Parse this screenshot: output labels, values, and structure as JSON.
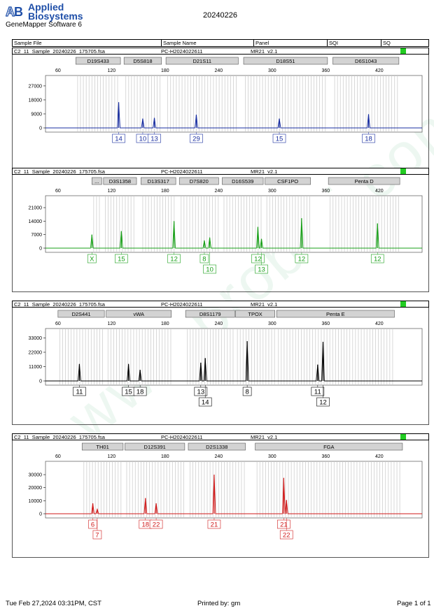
{
  "header": {
    "brand_line1": "Applied",
    "brand_line2": "Biosystems",
    "software": "GeneMapper Software 6",
    "date": "20240226"
  },
  "table_header": {
    "columns": [
      "Sample File",
      "Sample Name",
      "Panel",
      "SQI",
      "SQ"
    ]
  },
  "footer": {
    "timestamp": "Tue Feb 27,2024 03:31PM, CST",
    "printed_by": "Printed by: gm",
    "page": "Page 1 of 1"
  },
  "colors": {
    "blue": "#1a2fa0",
    "green": "#1aa01a",
    "black": "#000000",
    "red": "#d01a1a",
    "status_ok": "#22cc22"
  },
  "chart_data": [
    {
      "type": "line",
      "dye": "blue",
      "sample_file": "C2_11_Sample_20240226_175705.fsa",
      "sample_name": "PC-H2024022611",
      "panel": "MR21_v2.1",
      "x_ticks": [
        60,
        120,
        180,
        240,
        300,
        360,
        420
      ],
      "y_ticks": [
        0,
        9000,
        18000,
        27000
      ],
      "ylim": [
        0,
        31000
      ],
      "markers": [
        {
          "name": "D19S433",
          "start": 80,
          "end": 130
        },
        {
          "name": "D5S818",
          "start": 134,
          "end": 176
        },
        {
          "name": "D21S11",
          "start": 181,
          "end": 262
        },
        {
          "name": "D18S51",
          "start": 268,
          "end": 362
        },
        {
          "name": "D6S1043",
          "start": 368,
          "end": 442
        }
      ],
      "peaks": [
        {
          "x": 128,
          "h": 16500,
          "labels": [
            "14"
          ]
        },
        {
          "x": 155,
          "h": 6000,
          "labels": [
            "10"
          ]
        },
        {
          "x": 168,
          "h": 6500,
          "labels": [
            "13"
          ]
        },
        {
          "x": 215,
          "h": 8500,
          "labels": [
            "29"
          ]
        },
        {
          "x": 308,
          "h": 6000,
          "labels": [
            "15"
          ]
        },
        {
          "x": 408,
          "h": 8800,
          "labels": [
            "18"
          ]
        }
      ]
    },
    {
      "type": "line",
      "dye": "green",
      "sample_file": "C2_11_Sample_20240226_175705.fsa",
      "sample_name": "PC-H2024022611",
      "panel": "MR21_v2.1",
      "x_ticks": [
        60,
        120,
        180,
        240,
        300,
        360,
        420
      ],
      "y_ticks": [
        0,
        7000,
        14000,
        21000
      ],
      "ylim": [
        0,
        25000
      ],
      "markers": [
        {
          "name": "...",
          "start": 98,
          "end": 109
        },
        {
          "name": "D3S1358",
          "start": 111,
          "end": 148
        },
        {
          "name": "D13S317",
          "start": 153,
          "end": 192
        },
        {
          "name": "D7S820",
          "start": 196,
          "end": 240
        },
        {
          "name": "D16S539",
          "start": 244,
          "end": 290
        },
        {
          "name": "CSF1PO",
          "start": 292,
          "end": 343
        },
        {
          "name": "Penta D",
          "start": 363,
          "end": 443
        }
      ],
      "peaks": [
        {
          "x": 98,
          "h": 7000,
          "labels": [
            "X"
          ]
        },
        {
          "x": 131,
          "h": 8800,
          "labels": [
            "15"
          ]
        },
        {
          "x": 190,
          "h": 14000,
          "labels": [
            "12"
          ]
        },
        {
          "x": 224,
          "h": 4000,
          "labels": [
            "8"
          ]
        },
        {
          "x": 230,
          "h": 5500,
          "labels": [
            "10"
          ],
          "row": 2
        },
        {
          "x": 284,
          "h": 11000,
          "labels": [
            "12"
          ]
        },
        {
          "x": 288,
          "h": 4800,
          "labels": [
            "13"
          ],
          "row": 2
        },
        {
          "x": 333,
          "h": 15500,
          "labels": [
            "12"
          ]
        },
        {
          "x": 418,
          "h": 12800,
          "labels": [
            "12"
          ]
        }
      ]
    },
    {
      "type": "line",
      "dye": "black",
      "sample_file": "C2_11_Sample_20240226_175705.fsa",
      "sample_name": "PC-H2024022611",
      "panel": "MR21_v2.1",
      "x_ticks": [
        60,
        120,
        180,
        240,
        300,
        360,
        420
      ],
      "y_ticks": [
        0,
        11000,
        22000,
        33000
      ],
      "ylim": [
        0,
        37000
      ],
      "markers": [
        {
          "name": "D2S441",
          "start": 60,
          "end": 112
        },
        {
          "name": "vWA",
          "start": 114,
          "end": 187
        },
        {
          "name": "D8S1179",
          "start": 203,
          "end": 258
        },
        {
          "name": "TPOX",
          "start": 259,
          "end": 303
        },
        {
          "name": "Penta E",
          "start": 305,
          "end": 437
        }
      ],
      "peaks": [
        {
          "x": 84,
          "h": 13000,
          "labels": [
            "11"
          ]
        },
        {
          "x": 139,
          "h": 13000,
          "labels": [
            "15"
          ]
        },
        {
          "x": 152,
          "h": 8500,
          "labels": [
            "18"
          ]
        },
        {
          "x": 220,
          "h": 14000,
          "labels": [
            "13"
          ]
        },
        {
          "x": 225,
          "h": 17500,
          "labels": [
            "14"
          ],
          "row": 2
        },
        {
          "x": 272,
          "h": 30500,
          "labels": [
            "8"
          ]
        },
        {
          "x": 351,
          "h": 12500,
          "labels": [
            "11"
          ]
        },
        {
          "x": 357,
          "h": 30000,
          "labels": [
            "12"
          ],
          "row": 2
        }
      ]
    },
    {
      "type": "line",
      "dye": "red",
      "sample_file": "C2_11_Sample_20240226_175705.fsa",
      "sample_name": "PC-H2024022611",
      "panel": "MR21_v2.1",
      "x_ticks": [
        60,
        120,
        180,
        240,
        300,
        360,
        420
      ],
      "y_ticks": [
        0,
        10000,
        20000,
        30000
      ],
      "ylim": [
        0,
        37000
      ],
      "markers": [
        {
          "name": "TH01",
          "start": 87,
          "end": 133
        },
        {
          "name": "D12S391",
          "start": 135,
          "end": 202
        },
        {
          "name": "D2S1338",
          "start": 206,
          "end": 270
        },
        {
          "name": "FGA",
          "start": 281,
          "end": 446
        }
      ],
      "peaks": [
        {
          "x": 99,
          "h": 8000,
          "labels": [
            "6"
          ]
        },
        {
          "x": 104,
          "h": 3500,
          "labels": [
            "7"
          ],
          "row": 2
        },
        {
          "x": 158,
          "h": 12000,
          "labels": [
            "18"
          ]
        },
        {
          "x": 170,
          "h": 8000,
          "labels": [
            "22"
          ]
        },
        {
          "x": 235,
          "h": 30000,
          "labels": [
            "21"
          ]
        },
        {
          "x": 313,
          "h": 27500,
          "labels": [
            "21"
          ]
        },
        {
          "x": 316,
          "h": 10500,
          "labels": [
            "22"
          ],
          "row": 2
        }
      ]
    }
  ]
}
